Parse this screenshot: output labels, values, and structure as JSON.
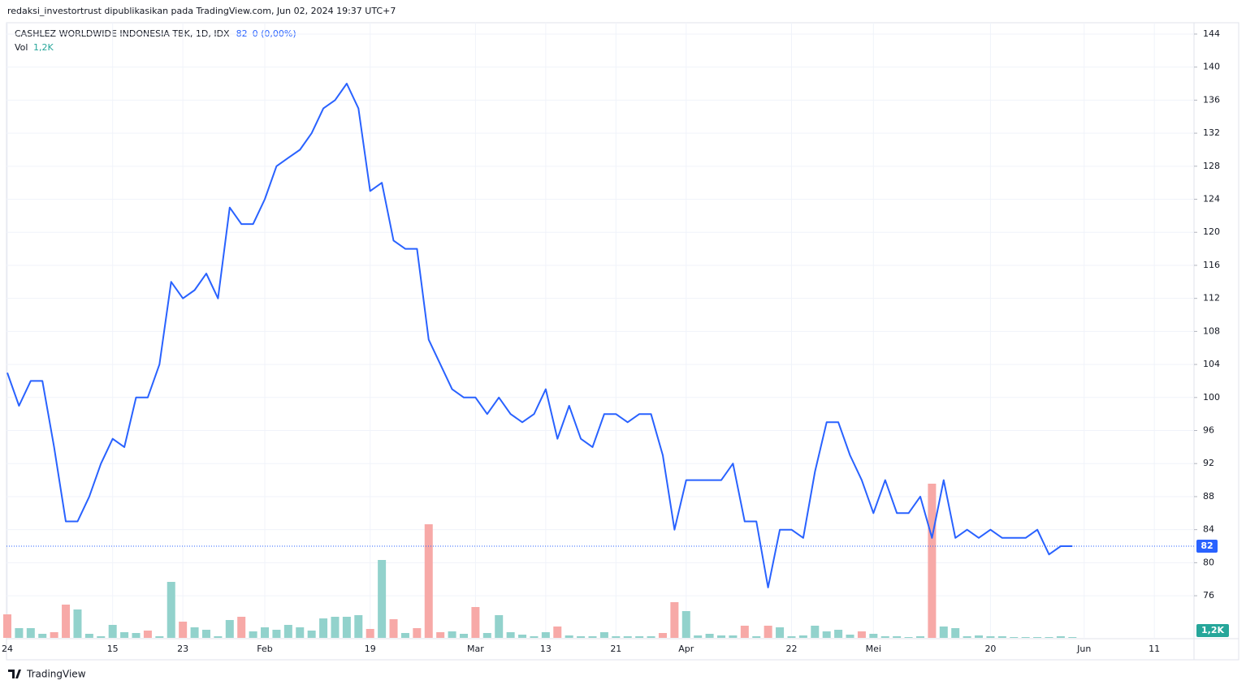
{
  "header": "redaksi_investortrust dipublikasikan pada TradingView.com, Jun 02, 2024 19:37 UTC+7",
  "footer": "TradingView",
  "chart_data": {
    "type": "line",
    "title": "CASHLEZ WORLDWIDE INDONESIA TBK, 1D, IDX",
    "change": "0 (0,00%)",
    "color": "#2962ff",
    "categories": [
      "24",
      null,
      null,
      null,
      null,
      null,
      null,
      null,
      null,
      "15",
      null,
      null,
      null,
      null,
      null,
      "23",
      null,
      null,
      null,
      null,
      null,
      null,
      "Feb",
      null,
      null,
      null,
      null,
      null,
      null,
      null,
      null,
      "19",
      null,
      null,
      null,
      null,
      null,
      null,
      null,
      null,
      "Mar",
      null,
      null,
      null,
      null,
      null,
      "13",
      null,
      null,
      null,
      null,
      null,
      "21",
      null,
      null,
      null,
      null,
      null,
      "Apr",
      null,
      null,
      null,
      null,
      null,
      null,
      null,
      null,
      "22",
      null,
      null,
      null,
      null,
      null,
      null,
      "Mei",
      null,
      null,
      null,
      null,
      null,
      null,
      null,
      null,
      null,
      "20",
      null,
      null,
      null,
      null,
      null,
      null,
      null,
      "Jun",
      null,
      null,
      null,
      null,
      null,
      "11",
      null,
      null
    ],
    "values": [
      103,
      99,
      102,
      102,
      94,
      85,
      85,
      88,
      92,
      95,
      94,
      100,
      100,
      104,
      114,
      112,
      113,
      115,
      112,
      123,
      121,
      121,
      124,
      128,
      129,
      130,
      132,
      135,
      136,
      138,
      135,
      125,
      126,
      119,
      118,
      118,
      107,
      104,
      101,
      100,
      100,
      98,
      100,
      98,
      97,
      98,
      101,
      95,
      99,
      95,
      94,
      98,
      98,
      97,
      98,
      98,
      93,
      84,
      90,
      90,
      90,
      90,
      92,
      85,
      85,
      77,
      84,
      84,
      83,
      91,
      97,
      97,
      93,
      90,
      86,
      90,
      86,
      86,
      88,
      83,
      90,
      83,
      84,
      83,
      84,
      83,
      83,
      83,
      84,
      81,
      82,
      82,
      null,
      null,
      null,
      null,
      null,
      null,
      null,
      null,
      null
    ],
    "ylim": [
      70.8,
      146.65
    ],
    "yticks": [
      76,
      80,
      84,
      88,
      92,
      96,
      100,
      104,
      108,
      112,
      116,
      120,
      124,
      128,
      132,
      136,
      140,
      144
    ],
    "grid": true,
    "volume": {
      "name": "Vol",
      "last_value_label": "1,2K",
      "ylim": [
        0,
        228000
      ],
      "values": [
        34800,
        14400,
        14400,
        6000,
        8400,
        49200,
        42000,
        6000,
        2400,
        19200,
        8400,
        7200,
        10800,
        2400,
        82800,
        24000,
        15600,
        12000,
        2400,
        26400,
        31200,
        9600,
        15600,
        12000,
        19200,
        15600,
        10800,
        28800,
        31200,
        31200,
        33600,
        13200,
        115200,
        27600,
        7200,
        14400,
        168000,
        8400,
        9600,
        6000,
        45600,
        7200,
        33600,
        8400,
        4800,
        2400,
        8400,
        16800,
        3600,
        2400,
        2400,
        8400,
        2400,
        2400,
        2400,
        2400,
        7200,
        52800,
        39600,
        3600,
        6000,
        3600,
        3600,
        18000,
        2400,
        18000,
        15600,
        2400,
        3600,
        18000,
        9600,
        12000,
        4800,
        9600,
        6000,
        2400,
        2400,
        1200,
        2400,
        228000,
        16800,
        14400,
        2400,
        3600,
        2400,
        2400,
        1200,
        1200,
        1200,
        1200,
        2400,
        1200,
        null,
        null,
        null,
        null,
        null,
        null,
        null,
        null,
        null
      ],
      "colors": [
        "#f7a9a7",
        "#92d2cc",
        "#92d2cc",
        "#92d2cc",
        "#f7a9a7",
        "#f7a9a7",
        "#92d2cc",
        "#92d2cc",
        "#92d2cc",
        "#92d2cc",
        "#92d2cc",
        "#92d2cc",
        "#f7a9a7",
        "#92d2cc",
        "#92d2cc",
        "#f7a9a7",
        "#92d2cc",
        "#92d2cc",
        "#92d2cc",
        "#92d2cc",
        "#f7a9a7",
        "#92d2cc",
        "#92d2cc",
        "#92d2cc",
        "#92d2cc",
        "#92d2cc",
        "#92d2cc",
        "#92d2cc",
        "#92d2cc",
        "#92d2cc",
        "#92d2cc",
        "#f7a9a7",
        "#92d2cc",
        "#f7a9a7",
        "#92d2cc",
        "#f7a9a7",
        "#f7a9a7",
        "#f7a9a7",
        "#92d2cc",
        "#92d2cc",
        "#f7a9a7",
        "#92d2cc",
        "#92d2cc",
        "#92d2cc",
        "#92d2cc",
        "#92d2cc",
        "#92d2cc",
        "#f7a9a7",
        "#92d2cc",
        "#92d2cc",
        "#92d2cc",
        "#92d2cc",
        "#92d2cc",
        "#92d2cc",
        "#92d2cc",
        "#92d2cc",
        "#f7a9a7",
        "#f7a9a7",
        "#92d2cc",
        "#92d2cc",
        "#92d2cc",
        "#92d2cc",
        "#92d2cc",
        "#f7a9a7",
        "#92d2cc",
        "#f7a9a7",
        "#92d2cc",
        "#92d2cc",
        "#92d2cc",
        "#92d2cc",
        "#92d2cc",
        "#92d2cc",
        "#92d2cc",
        "#f7a9a7",
        "#92d2cc",
        "#92d2cc",
        "#92d2cc",
        "#92d2cc",
        "#92d2cc",
        "#f7a9a7",
        "#92d2cc",
        "#92d2cc",
        "#92d2cc",
        "#92d2cc",
        "#92d2cc",
        "#92d2cc",
        "#92d2cc",
        "#92d2cc",
        "#92d2cc",
        "#92d2cc",
        "#92d2cc",
        "#92d2cc",
        null,
        null,
        null,
        null,
        null,
        null,
        null,
        null,
        null
      ],
      "label_color": "#26a69a"
    }
  }
}
